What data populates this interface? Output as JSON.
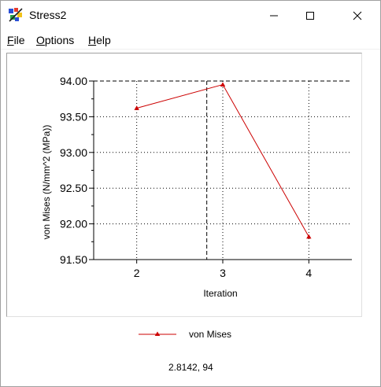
{
  "window": {
    "title": "Stress2",
    "icon": "stress-app-icon"
  },
  "menu": {
    "items": [
      {
        "label": "File",
        "mnemonic": "F",
        "rest": "ile"
      },
      {
        "label": "Options",
        "mnemonic": "O",
        "rest": "ptions"
      },
      {
        "label": "Help",
        "mnemonic": "H",
        "rest": "elp"
      }
    ]
  },
  "chart_data": {
    "type": "line",
    "categories": [
      "2",
      "3",
      "4"
    ],
    "x": [
      2,
      3,
      4
    ],
    "series": [
      {
        "name": "von Mises",
        "values": [
          93.62,
          93.95,
          91.82
        ],
        "color": "#cc0000",
        "marker": "triangle"
      }
    ],
    "xlabel": "Iteration",
    "ylabel": "von Mises (N/mm^2 (MPa))",
    "xlim": [
      1.5,
      4.5
    ],
    "ylim": [
      91.5,
      94.0
    ],
    "yticks": [
      "94.00",
      "93.50",
      "93.00",
      "92.50",
      "92.00",
      "91.50"
    ],
    "ytick_values": [
      94.0,
      93.5,
      93.0,
      92.5,
      92.0,
      91.5
    ],
    "grid": true,
    "crosshair": {
      "x": 2.8142,
      "y": 94
    },
    "legend": "bottom-center"
  },
  "status": {
    "readout": "2.8142, 94"
  }
}
